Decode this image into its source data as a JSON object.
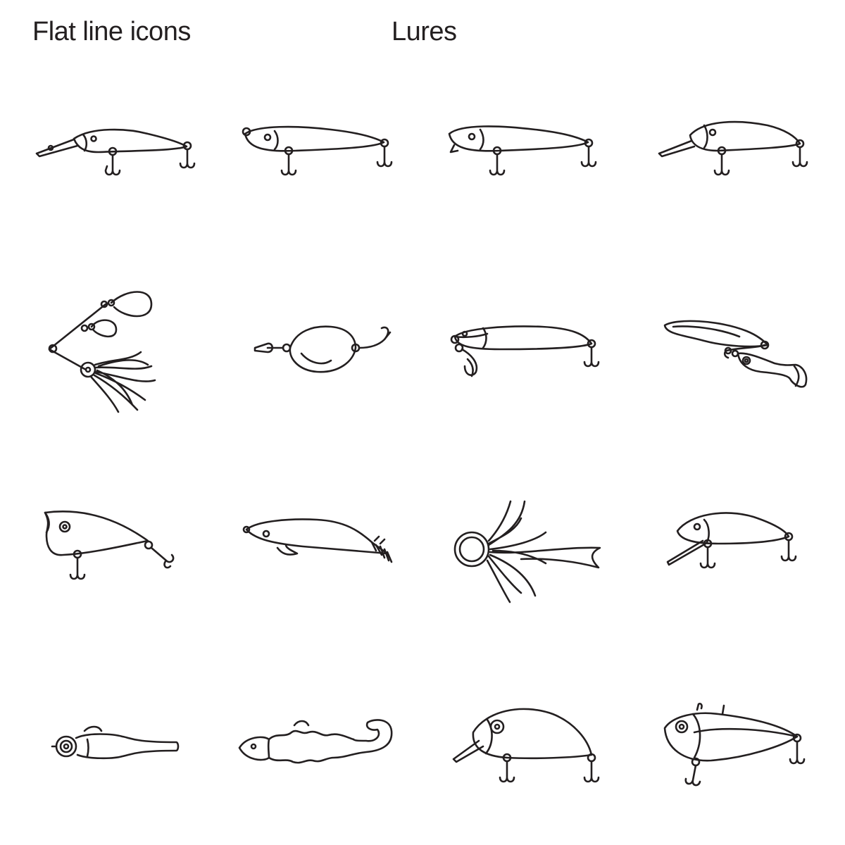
{
  "header": {
    "left_title": "Flat line icons",
    "center_title": "Lures"
  },
  "icons": [
    {
      "name": "deep-diver-crankbait-icon"
    },
    {
      "name": "minnow-jerkbait-icon"
    },
    {
      "name": "minnow-lure-icon"
    },
    {
      "name": "long-bill-minnow-icon"
    },
    {
      "name": "spinnerbait-icon"
    },
    {
      "name": "spoon-lure-icon"
    },
    {
      "name": "stickbait-lure-icon"
    },
    {
      "name": "tandem-swimbait-icon"
    },
    {
      "name": "popper-lure-icon"
    },
    {
      "name": "squid-jig-icon"
    },
    {
      "name": "skirted-trolling-lure-icon"
    },
    {
      "name": "shallow-diver-crankbait-icon"
    },
    {
      "name": "jighead-soft-bait-icon"
    },
    {
      "name": "curly-tail-grub-icon"
    },
    {
      "name": "fat-crankbait-icon"
    },
    {
      "name": "lipless-vibration-lure-icon"
    }
  ],
  "colors": {
    "line": "#231f20",
    "background": "#ffffff"
  }
}
